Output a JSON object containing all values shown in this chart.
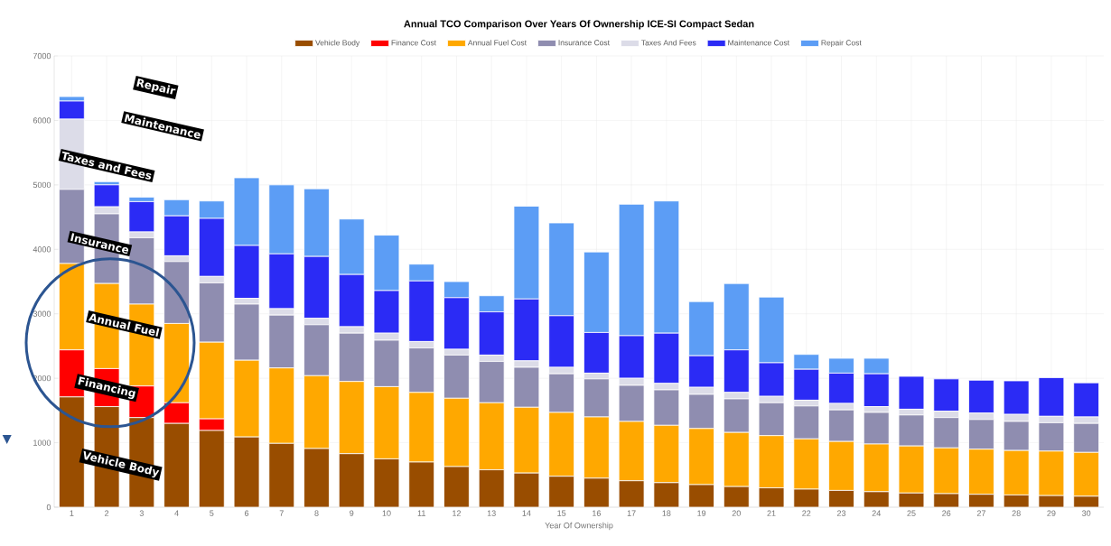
{
  "chart_data": {
    "type": "bar",
    "stacked": true,
    "title": "Annual TCO Comparison Over Years Of Ownership ICE-SI Compact Sedan",
    "xlabel": "Year Of Ownership",
    "categories": [
      "1",
      "2",
      "3",
      "4",
      "5",
      "6",
      "7",
      "8",
      "9",
      "10",
      "11",
      "12",
      "13",
      "14",
      "15",
      "16",
      "17",
      "18",
      "19",
      "20",
      "21",
      "22",
      "23",
      "24",
      "25",
      "26",
      "27",
      "28",
      "29",
      "30"
    ],
    "series": [
      {
        "name": "Vehicle Body",
        "color": "#994d00",
        "values": [
          1710,
          1560,
          1390,
          1300,
          1190,
          1090,
          990,
          910,
          830,
          750,
          700,
          630,
          580,
          530,
          480,
          450,
          410,
          380,
          350,
          320,
          300,
          280,
          260,
          240,
          220,
          210,
          200,
          190,
          180,
          170
        ]
      },
      {
        "name": "Finance Cost",
        "color": "#ff0000",
        "values": [
          730,
          590,
          490,
          320,
          180,
          0,
          0,
          0,
          0,
          0,
          0,
          0,
          0,
          0,
          0,
          0,
          0,
          0,
          0,
          0,
          0,
          0,
          0,
          0,
          0,
          0,
          0,
          0,
          0,
          0
        ]
      },
      {
        "name": "Annual Fuel Cost",
        "color": "#ffa800",
        "values": [
          1340,
          1320,
          1270,
          1230,
          1190,
          1190,
          1170,
          1130,
          1120,
          1120,
          1080,
          1060,
          1040,
          1020,
          990,
          950,
          920,
          890,
          870,
          840,
          810,
          780,
          760,
          740,
          730,
          710,
          700,
          690,
          690,
          680
        ]
      },
      {
        "name": "Insurance Cost",
        "color": "#8f8db0",
        "values": [
          1150,
          1080,
          1030,
          960,
          920,
          870,
          820,
          790,
          750,
          720,
          690,
          670,
          640,
          620,
          600,
          590,
          560,
          550,
          530,
          520,
          510,
          510,
          490,
          490,
          480,
          470,
          460,
          450,
          440,
          450
        ]
      },
      {
        "name": "Taxes And Fees",
        "color": "#dcdce8",
        "values": [
          1090,
          110,
          90,
          90,
          100,
          90,
          100,
          100,
          100,
          110,
          100,
          90,
          100,
          100,
          100,
          90,
          110,
          100,
          110,
          100,
          100,
          90,
          100,
          90,
          90,
          100,
          100,
          110,
          100,
          100
        ]
      },
      {
        "name": "Maintenance Cost",
        "color": "#2b2bf5",
        "values": [
          280,
          340,
          470,
          620,
          900,
          820,
          850,
          960,
          810,
          660,
          940,
          800,
          670,
          960,
          800,
          630,
          660,
          780,
          490,
          660,
          520,
          480,
          470,
          510,
          510,
          500,
          510,
          520,
          600,
          530
        ]
      },
      {
        "name": "Repair Cost",
        "color": "#5c9df5",
        "values": [
          70,
          50,
          70,
          250,
          270,
          1050,
          1070,
          1050,
          860,
          860,
          260,
          250,
          250,
          1440,
          1440,
          1250,
          2040,
          2050,
          840,
          1030,
          1020,
          230,
          230,
          240,
          0,
          0,
          0,
          0,
          0,
          0
        ]
      }
    ],
    "ylim": [
      0,
      7000
    ],
    "yticks": [
      0,
      1000,
      2000,
      3000,
      4000,
      5000,
      6000,
      7000
    ],
    "grid": true,
    "legend": "top",
    "annotations": [
      "Repair",
      "Maintenance",
      "Taxes and Fees",
      "Insurance",
      "Annual  Fuel",
      "Financing",
      "Vehicle Body"
    ]
  }
}
